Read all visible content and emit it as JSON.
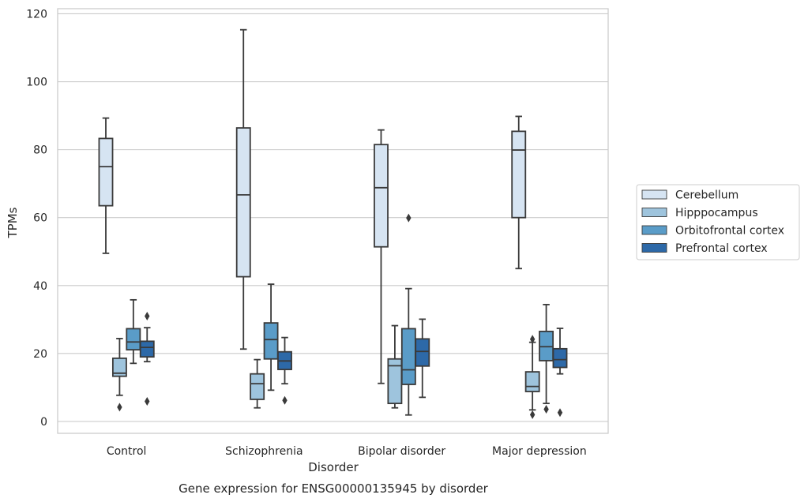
{
  "chart_data": {
    "type": "box",
    "caption": "Gene expression for ENSG00000135945 by disorder",
    "xlabel": "Disorder",
    "ylabel": "TPMs",
    "ylim": [
      -3.5,
      121.5
    ],
    "yticks": [
      0,
      20,
      40,
      60,
      80,
      100,
      120
    ],
    "grid": "horizontal",
    "legend_position": "right",
    "categories": [
      "Control",
      "Schizophrenia",
      "Bipolar disorder",
      "Major depression"
    ],
    "series": [
      {
        "name": "Cerebellum",
        "color": "#d6e4f2",
        "boxes": [
          {
            "whisker_low": 49.5,
            "q1": 63.5,
            "median": 75.0,
            "q3": 83.3,
            "whisker_high": 89.3,
            "outliers": []
          },
          {
            "whisker_low": 21.3,
            "q1": 42.6,
            "median": 66.7,
            "q3": 86.4,
            "whisker_high": 115.3,
            "outliers": []
          },
          {
            "whisker_low": 11.2,
            "q1": 51.4,
            "median": 68.8,
            "q3": 81.5,
            "whisker_high": 85.8,
            "outliers": []
          },
          {
            "whisker_low": 45.0,
            "q1": 60.0,
            "median": 79.9,
            "q3": 85.4,
            "whisker_high": 89.8,
            "outliers": []
          }
        ]
      },
      {
        "name": "Hipppocampus",
        "color": "#9ec4dd",
        "boxes": [
          {
            "whisker_low": 7.7,
            "q1": 13.3,
            "median": 14.2,
            "q3": 18.6,
            "whisker_high": 24.4,
            "outliers": [
              4.2
            ]
          },
          {
            "whisker_low": 4.0,
            "q1": 6.5,
            "median": 11.1,
            "q3": 14.0,
            "whisker_high": 18.2,
            "outliers": []
          },
          {
            "whisker_low": 4.0,
            "q1": 5.3,
            "median": 16.4,
            "q3": 18.4,
            "whisker_high": 28.2,
            "outliers": []
          },
          {
            "whisker_low": 3.4,
            "q1": 8.8,
            "median": 10.3,
            "q3": 14.6,
            "whisker_high": 23.3,
            "outliers": [
              2.0,
              24.2
            ]
          }
        ]
      },
      {
        "name": "Orbitofrontal cortex",
        "color": "#5a9cc8",
        "boxes": [
          {
            "whisker_low": 17.1,
            "q1": 21.1,
            "median": 23.4,
            "q3": 27.3,
            "whisker_high": 35.8,
            "outliers": []
          },
          {
            "whisker_low": 9.2,
            "q1": 18.4,
            "median": 24.1,
            "q3": 29.0,
            "whisker_high": 40.4,
            "outliers": []
          },
          {
            "whisker_low": 1.9,
            "q1": 10.9,
            "median": 15.2,
            "q3": 27.3,
            "whisker_high": 39.1,
            "outliers": [
              59.9
            ]
          },
          {
            "whisker_low": 5.3,
            "q1": 17.9,
            "median": 22.0,
            "q3": 26.5,
            "whisker_high": 34.4,
            "outliers": [
              3.6
            ]
          }
        ]
      },
      {
        "name": "Prefrontal cortex",
        "color": "#2d69a8",
        "boxes": [
          {
            "whisker_low": 17.6,
            "q1": 19.0,
            "median": 21.8,
            "q3": 23.6,
            "whisker_high": 27.6,
            "outliers": [
              5.9,
              31.0
            ]
          },
          {
            "whisker_low": 11.1,
            "q1": 15.3,
            "median": 17.8,
            "q3": 20.5,
            "whisker_high": 24.7,
            "outliers": [
              6.2
            ]
          },
          {
            "whisker_low": 7.1,
            "q1": 16.3,
            "median": 20.6,
            "q3": 24.3,
            "whisker_high": 30.1,
            "outliers": []
          },
          {
            "whisker_low": 14.0,
            "q1": 15.9,
            "median": 18.2,
            "q3": 21.4,
            "whisker_high": 27.4,
            "outliers": [
              2.6
            ]
          }
        ]
      }
    ]
  }
}
